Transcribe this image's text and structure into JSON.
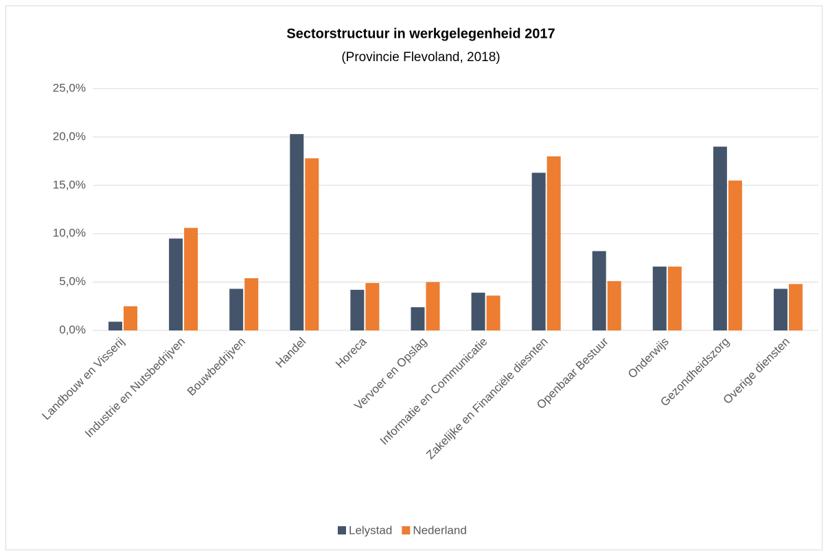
{
  "chart_data": {
    "type": "bar",
    "title": "Sectorstructuur in werkgelegenheid 2017",
    "subtitle": "(Provincie Flevoland, 2018)",
    "categories": [
      "Landbouw en Visserij",
      "Industrie en Nutsbedrijven",
      "Bouwbedrijven",
      "Handel",
      "Horeca",
      "Vervoer en Opslag",
      "Informatie en Communicatie",
      "Zakelijke en Financiële diesnten",
      "Openbaar Bestuur",
      "Onderwijs",
      "Gezondheidszorg",
      "Overige diensten"
    ],
    "series": [
      {
        "name": "Lelystad",
        "color": "#44546a",
        "values": [
          0.9,
          9.5,
          4.3,
          20.3,
          4.2,
          2.4,
          3.9,
          16.3,
          8.2,
          6.6,
          19.0,
          4.3
        ]
      },
      {
        "name": "Nederland",
        "color": "#ed7d31",
        "values": [
          2.5,
          10.6,
          5.4,
          17.8,
          4.9,
          5.0,
          3.6,
          18.0,
          5.1,
          6.6,
          15.5,
          4.8
        ]
      }
    ],
    "ylim": [
      0,
      25
    ],
    "yticks": [
      {
        "value": 0,
        "label": "0,0%"
      },
      {
        "value": 5,
        "label": "5,0%"
      },
      {
        "value": 10,
        "label": "10,0%"
      },
      {
        "value": 15,
        "label": "15,0%"
      },
      {
        "value": 20,
        "label": "20,0%"
      },
      {
        "value": 25,
        "label": "25,0%"
      }
    ],
    "grid": true,
    "legend": "bottom"
  }
}
